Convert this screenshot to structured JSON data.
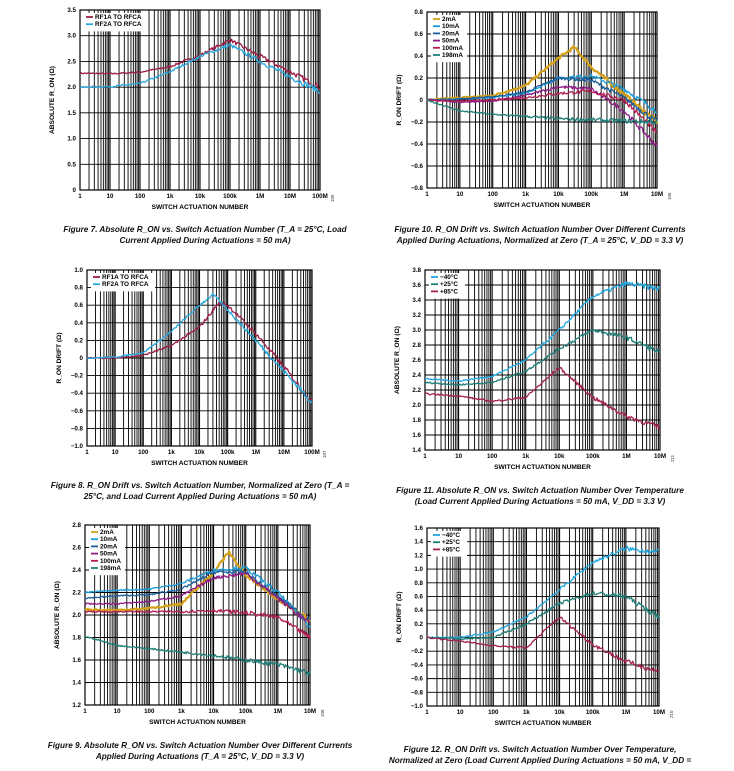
{
  "captions": [
    {
      "id": 7,
      "lines": [
        "Figure 7. Absolute R_ON vs. Switch Actuation Number (T_A = 25°C, Load",
        "Current Applied During Actuations = 50 mA)"
      ]
    },
    {
      "id": 10,
      "lines": [
        "Figure 10. R_ON Drift vs. Switch Actuation Number Over Different Currents",
        "Applied During Actuations, Normalized at Zero (T_A = 25°C, V_DD = 3.3 V)"
      ]
    },
    {
      "id": 8,
      "lines": [
        "Figure 8. R_ON Drift vs. Switch Actuation Number, Normalized at Zero (T_A =",
        "25°C, and Load Current Applied During Actuations = 50 mA)"
      ]
    },
    {
      "id": 11,
      "lines": [
        "Figure 11. Absolute R_ON vs. Switch Actuation Number Over Temperature",
        "(Load Current Applied During Actuations = 50 mA, V_DD = 3.3 V)"
      ]
    },
    {
      "id": 9,
      "lines": [
        "Figure 9. Absolute R_ON vs. Switch Actuation Number Over Different Currents",
        "Applied During Actuations (T_A = 25°C, V_DD = 3.3 V)"
      ]
    },
    {
      "id": 12,
      "lines": [
        "Figure 12. R_ON Drift vs. Switch Actuation Number Over Temperature,",
        "Normalized at Zero (Load Current Applied During Actuations = 50 mA, V_DD ="
      ]
    }
  ],
  "colors": {
    "rf1": "#9b1c45",
    "rf2": "#29a8de",
    "i2": "#d4a017",
    "i10": "#1d9bd7",
    "i20": "#1b5f9e",
    "i50": "#8e1b86",
    "i100": "#b31e52",
    "i198": "#1f7f78",
    "tm40": "#22a8e0",
    "t25": "#1d7f78",
    "t85": "#a3214a"
  },
  "chart_data": [
    {
      "id": "fig7",
      "type": "line",
      "figure_code": "105",
      "xscale": "log",
      "xlim": [
        1,
        100000000
      ],
      "xticks": [
        "1",
        "10",
        "100",
        "1k",
        "10k",
        "100k",
        "1M",
        "10M",
        "100M"
      ],
      "xlabel": "SWITCH ACTUATION NUMBER",
      "ylabel": "ABSOLUTE R_ON (Ω)",
      "ylim": [
        0,
        3.5
      ],
      "yticks": [
        "0",
        "0.5",
        "1.0",
        "1.5",
        "2.0",
        "2.5",
        "3.0",
        "3.5"
      ],
      "series": [
        {
          "name": "RF1A TO RFCA",
          "color": "rf1",
          "x": [
            1,
            10,
            100,
            1000,
            10000,
            100000,
            1000000,
            10000000,
            100000000
          ],
          "y": [
            2.27,
            2.26,
            2.29,
            2.4,
            2.62,
            2.92,
            2.6,
            2.3,
            2.0
          ]
        },
        {
          "name": "RF2A TO RFCA",
          "color": "rf2",
          "x": [
            1,
            10,
            100,
            1000,
            10000,
            100000,
            1000000,
            10000000,
            100000000
          ],
          "y": [
            2.0,
            2.01,
            2.07,
            2.3,
            2.6,
            2.82,
            2.5,
            2.2,
            1.92
          ]
        }
      ]
    },
    {
      "id": "fig10",
      "type": "line",
      "figure_code": "106",
      "xscale": "log",
      "xlim": [
        1,
        10000000
      ],
      "xticks": [
        "1",
        "10",
        "100",
        "1k",
        "10k",
        "100k",
        "1M",
        "10M"
      ],
      "xlabel": "SWITCH ACTUATION NUMBER",
      "ylabel": "R_ON DRIFT (Ω)",
      "ylim": [
        -0.8,
        0.8
      ],
      "yticks": [
        "−0.8",
        "−0.6",
        "−0.4",
        "−0.2",
        "0",
        "0.2",
        "0.4",
        "0.6",
        "0.8"
      ],
      "series": [
        {
          "name": "2mA",
          "color": "i2",
          "x": [
            1,
            10,
            100,
            1000,
            10000,
            30000,
            100000,
            1000000,
            10000000
          ],
          "y": [
            0,
            0.02,
            0.04,
            0.13,
            0.38,
            0.48,
            0.3,
            0.05,
            -0.2
          ]
        },
        {
          "name": "10mA",
          "color": "i10",
          "x": [
            1,
            10,
            100,
            1000,
            10000,
            100000,
            1000000,
            10000000
          ],
          "y": [
            0,
            0.01,
            0.02,
            0.06,
            0.2,
            0.22,
            0.1,
            -0.1
          ]
        },
        {
          "name": "20mA",
          "color": "i20",
          "x": [
            1,
            10,
            100,
            1000,
            10000,
            100000,
            1000000,
            10000000
          ],
          "y": [
            0,
            0.01,
            0.03,
            0.07,
            0.2,
            0.18,
            0.02,
            -0.2
          ]
        },
        {
          "name": "50mA",
          "color": "i50",
          "x": [
            1,
            10,
            100,
            1000,
            10000,
            100000,
            1000000,
            10000000
          ],
          "y": [
            0,
            -0.02,
            -0.01,
            0.04,
            0.12,
            0.1,
            -0.1,
            -0.42
          ]
        },
        {
          "name": "100mA",
          "color": "i100",
          "x": [
            1,
            10,
            100,
            1000,
            10000,
            100000,
            1000000,
            10000000
          ],
          "y": [
            0,
            -0.01,
            0.0,
            0.02,
            0.06,
            0.08,
            0.0,
            -0.3
          ]
        },
        {
          "name": "198mA",
          "color": "i198",
          "x": [
            1,
            10,
            100,
            1000,
            10000,
            100000,
            1000000,
            10000000
          ],
          "y": [
            0,
            -0.1,
            -0.13,
            -0.15,
            -0.17,
            -0.18,
            -0.19,
            -0.2
          ]
        }
      ]
    },
    {
      "id": "fig8",
      "type": "line",
      "figure_code": "107",
      "xscale": "log",
      "xlim": [
        1,
        100000000
      ],
      "xticks": [
        "1",
        "10",
        "100",
        "1k",
        "10k",
        "100k",
        "1M",
        "10M",
        "100M"
      ],
      "xlabel": "SWITCH ACTUATION NUMBER",
      "ylabel": "R_ON DRIFT (Ω)",
      "ylim": [
        -1.0,
        1.0
      ],
      "yticks": [
        "−1.0",
        "−0.8",
        "−0.6",
        "−0.4",
        "−0.2",
        "0",
        "0.2",
        "0.4",
        "0.6",
        "0.8",
        "1.0"
      ],
      "series": [
        {
          "name": "RF1A TO RFCA",
          "color": "rf1",
          "x": [
            1,
            10,
            100,
            1000,
            10000,
            50000,
            100000,
            1000000,
            10000000,
            100000000
          ],
          "y": [
            0,
            0.0,
            0.03,
            0.14,
            0.35,
            0.63,
            0.6,
            0.28,
            -0.1,
            -0.5
          ]
        },
        {
          "name": "RF2A TO RFCA",
          "color": "rf2",
          "x": [
            1,
            10,
            100,
            1000,
            10000,
            30000,
            100000,
            1000000,
            10000000,
            100000000
          ],
          "y": [
            0,
            0.01,
            0.06,
            0.3,
            0.6,
            0.72,
            0.55,
            0.2,
            -0.15,
            -0.5
          ]
        }
      ]
    },
    {
      "id": "fig11",
      "type": "line",
      "figure_code": "211",
      "xscale": "log",
      "xlim": [
        1,
        10000000
      ],
      "xticks": [
        "1",
        "10",
        "100",
        "1k",
        "10k",
        "100k",
        "1M",
        "10M"
      ],
      "xlabel": "SWITCH ACTUATION NUMBER",
      "ylabel": "ABSOLUTE R_ON (Ω)",
      "ylim": [
        1.4,
        3.8
      ],
      "yticks": [
        "1.4",
        "1.6",
        "1.8",
        "2.0",
        "2.2",
        "2.4",
        "2.6",
        "2.8",
        "3.0",
        "3.2",
        "3.4",
        "3.6",
        "3.8"
      ],
      "series": [
        {
          "name": "−40°C",
          "color": "tm40",
          "x": [
            1,
            10,
            100,
            1000,
            10000,
            100000,
            1000000,
            10000000
          ],
          "y": [
            2.35,
            2.32,
            2.38,
            2.6,
            3.0,
            3.45,
            3.62,
            3.55
          ]
        },
        {
          "name": "+25°C",
          "color": "t25",
          "x": [
            1,
            10,
            100,
            1000,
            10000,
            100000,
            1000000,
            10000000
          ],
          "y": [
            2.3,
            2.27,
            2.3,
            2.45,
            2.75,
            3.0,
            2.9,
            2.7
          ]
        },
        {
          "name": "+85°C",
          "color": "t85",
          "x": [
            1,
            10,
            100,
            1000,
            10000,
            100000,
            1000000,
            10000000
          ],
          "y": [
            2.15,
            2.12,
            2.05,
            2.1,
            2.5,
            2.1,
            1.85,
            1.7
          ]
        }
      ]
    },
    {
      "id": "fig9",
      "type": "line",
      "figure_code": "108",
      "xscale": "log",
      "xlim": [
        1,
        10000000
      ],
      "xticks": [
        "1",
        "10",
        "100",
        "1k",
        "10k",
        "100k",
        "1M",
        "10M"
      ],
      "xlabel": "SWITCH ACTUATION NUMBER",
      "ylabel": "ABSOLUTE R_ON (Ω)",
      "ylim": [
        1.2,
        2.8
      ],
      "yticks": [
        "1.2",
        "1.4",
        "1.6",
        "1.8",
        "2.0",
        "2.2",
        "2.4",
        "2.6",
        "2.8"
      ],
      "series": [
        {
          "name": "2mA",
          "color": "i2",
          "x": [
            1,
            10,
            100,
            1000,
            10000,
            30000,
            100000,
            1000000,
            10000000
          ],
          "y": [
            2.05,
            2.04,
            2.06,
            2.1,
            2.38,
            2.56,
            2.35,
            2.15,
            1.95
          ]
        },
        {
          "name": "10mA",
          "color": "i10",
          "x": [
            1,
            10,
            100,
            1000,
            10000,
            100000,
            1000000,
            10000000
          ],
          "y": [
            2.2,
            2.22,
            2.23,
            2.28,
            2.4,
            2.42,
            2.2,
            1.9
          ]
        },
        {
          "name": "20mA",
          "color": "i20",
          "x": [
            1,
            10,
            100,
            1000,
            10000,
            100000,
            1000000,
            10000000
          ],
          "y": [
            2.15,
            2.17,
            2.18,
            2.23,
            2.38,
            2.38,
            2.16,
            1.95
          ]
        },
        {
          "name": "50mA",
          "color": "i50",
          "x": [
            1,
            10,
            100,
            1000,
            10000,
            100000,
            1000000,
            10000000
          ],
          "y": [
            2.1,
            2.1,
            2.12,
            2.17,
            2.33,
            2.37,
            2.15,
            1.92
          ]
        },
        {
          "name": "100mA",
          "color": "i100",
          "x": [
            1,
            10,
            100,
            1000,
            10000,
            100000,
            1000000,
            10000000
          ],
          "y": [
            2.03,
            2.03,
            2.03,
            2.03,
            2.04,
            2.02,
            1.98,
            1.8
          ]
        },
        {
          "name": "198mA",
          "color": "i198",
          "x": [
            1,
            10,
            100,
            1000,
            10000,
            100000,
            1000000,
            10000000
          ],
          "y": [
            1.81,
            1.73,
            1.7,
            1.67,
            1.64,
            1.6,
            1.56,
            1.48
          ]
        }
      ]
    },
    {
      "id": "fig12",
      "type": "line",
      "figure_code": "210",
      "xscale": "log",
      "xlim": [
        1,
        10000000
      ],
      "xticks": [
        "1",
        "10",
        "100",
        "1k",
        "10k",
        "100k",
        "1M",
        "10M"
      ],
      "xlabel": "SWITCH ACTUATION NUMBER",
      "ylabel": "R_ON DRIFT (Ω)",
      "ylim": [
        -1.0,
        1.6
      ],
      "yticks": [
        "−1.0",
        "−0.8",
        "−0.6",
        "−0.4",
        "−0.2",
        "0",
        "0.2",
        "0.4",
        "0.6",
        "0.8",
        "1.0",
        "1.2",
        "1.4",
        "1.6"
      ],
      "series": [
        {
          "name": "−40°C",
          "color": "tm40",
          "x": [
            1,
            10,
            100,
            1000,
            10000,
            100000,
            1000000,
            10000000
          ],
          "y": [
            0,
            0.0,
            0.08,
            0.3,
            0.7,
            1.1,
            1.3,
            1.25
          ]
        },
        {
          "name": "+25°C",
          "color": "t25",
          "x": [
            1,
            10,
            100,
            1000,
            10000,
            100000,
            1000000,
            10000000
          ],
          "y": [
            0,
            -0.02,
            0.0,
            0.2,
            0.5,
            0.65,
            0.6,
            0.3
          ]
        },
        {
          "name": "+85°C",
          "color": "t85",
          "x": [
            1,
            10,
            100,
            1000,
            10000,
            100000,
            1000000,
            10000000
          ],
          "y": [
            0,
            -0.05,
            -0.12,
            -0.15,
            0.3,
            -0.1,
            -0.35,
            -0.5
          ]
        }
      ]
    }
  ]
}
